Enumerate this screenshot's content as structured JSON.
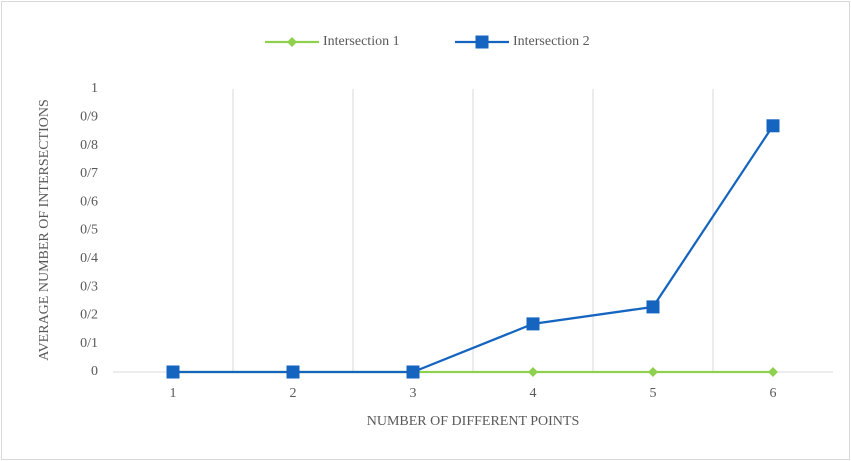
{
  "chart_data": {
    "type": "line",
    "categories": [
      "1",
      "2",
      "3",
      "4",
      "5",
      "6"
    ],
    "series": [
      {
        "name": "Intersection 1",
        "color": "#8fd14f",
        "marker": "diamond",
        "values": [
          0,
          0,
          0,
          0,
          0,
          0
        ]
      },
      {
        "name": "Intersection 2",
        "color": "#1565c0",
        "marker": "square",
        "values": [
          0,
          0,
          0,
          0.17,
          0.23,
          0.87
        ]
      }
    ],
    "x_label": "NUMBER OF DIFFERENT POINTS",
    "y_label": "AVERAGE NUMBER OF INTERSECTIONS",
    "ylim": [
      0,
      1
    ],
    "yticks": [
      0,
      {
        "value": 0.1,
        "label": "0/1"
      },
      {
        "value": 0.2,
        "label": "0/2"
      },
      {
        "value": 0.3,
        "label": "0/3"
      },
      {
        "value": 0.4,
        "label": "0/4"
      },
      {
        "value": 0.5,
        "label": "0/5"
      },
      {
        "value": 0.6,
        "label": "0/6"
      },
      {
        "value": 0.7,
        "label": "0/7"
      },
      {
        "value": 0.8,
        "label": "0/8"
      },
      {
        "value": 0.9,
        "label": "0/9"
      },
      1
    ],
    "grid": "x",
    "legend": "top"
  }
}
